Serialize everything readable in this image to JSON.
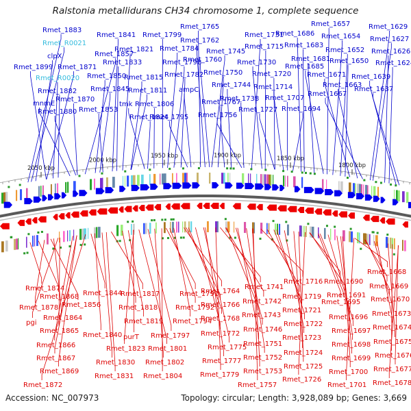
{
  "header": {
    "title": "Ralstonia metallidurans CH34 chromosome 1, complete sequence"
  },
  "footer": {
    "accession": "Accession: NC_007973",
    "summary": "Topology: circular; Length: 3,928,089 bp; Genes: 3,669"
  },
  "colors": {
    "forward_label": "#0000cc",
    "reverse_label": "#dd0000",
    "rna_label": "#33bbdd",
    "forward_strand": "#0000ee",
    "reverse_strand": "#ee0000",
    "backbone": "#5a5a5a"
  },
  "ticks": [
    "2050 kbp",
    "2000 kbp",
    "1950 kbp",
    "1900 kbp",
    "1850 kbp",
    "1800 kbp"
  ],
  "forward_labels": [
    "Rmet_1883",
    "Rmet_R0021",
    "clpX",
    "Rmet_1899",
    "Rmet_1871",
    "Rmet_R0020",
    "Rmet_1882",
    "mnmE",
    "Rmet_1870",
    "Rmet_1880",
    "Rmet_1857",
    "Rmet_1850",
    "Rmet_1845",
    "Rmet_1853",
    "Rmet_1841",
    "Rmet_1833",
    "Rmet_1821",
    "Rmet_1815",
    "Rmet_1811",
    "tmk",
    "Rmet_1824",
    "Rmet_1806",
    "Rmet_1799",
    "Rmet_1784",
    "Rmet_1798",
    "Rmet_1782",
    "Rmet_1795",
    "ampC",
    "Rmet_1765",
    "Rmet_1762",
    "Rmet_1760",
    "Rmet_1745",
    "Rmet_1750",
    "Rmet_1767",
    "Rmet_1744",
    "Rmet_1756",
    "Rmet_1738",
    "Rmet_1731",
    "Rmet_1730",
    "Rmet_1715",
    "Rmet_1720",
    "Rmet_1727",
    "Rmet_1714",
    "Rmet_1707",
    "Rmet_1694",
    "Rmet_1686",
    "Rmet_1683",
    "Rmet_1681",
    "Rmet_1685",
    "Rmet_1657",
    "Rmet_1654",
    "Rmet_1652",
    "Rmet_1650",
    "Rmet_1671",
    "Rmet_1663",
    "Rmet_1667",
    "Rmet_1629",
    "Rmet_1627",
    "Rmet_1626",
    "Rmet_1624",
    "Rmet_1639",
    "Rmet_1637"
  ],
  "reverse_labels": [
    "Rmet_1874",
    "Rmet_1868",
    "Rmet_1878",
    "Rmet_1856",
    "Rmet_1864",
    "pgi",
    "Rmet_1865",
    "Rmet_1866",
    "Rmet_1867",
    "Rmet_1869",
    "Rmet_1872",
    "Rmet_1844",
    "Rmet_1840",
    "Rmet_1830",
    "Rmet_1831",
    "Rmet_1817",
    "Rmet_1818",
    "Rmet_1819",
    "purT",
    "Rmet_1823",
    "Rmet_1801",
    "Rmet_1797",
    "Rmet_1802",
    "Rmet_1804",
    "Rmet_1791",
    "Rmet_1792",
    "Rmet_1794",
    "Rmet_1764",
    "Rmet_1766",
    "Rmet_1768",
    "Rmet_1772",
    "Rmet_1775",
    "Rmet_1777",
    "Rmet_1779",
    "Rmet_1741",
    "Rmet_1742",
    "Rmet_1743",
    "Rmet_1746",
    "Rmet_1751",
    "Rmet_1752",
    "Rmet_1753",
    "Rmet_1757",
    "Rmet_1716",
    "Rmet_1719",
    "Rmet_1721",
    "Rmet_1722",
    "Rmet_1723",
    "Rmet_1724",
    "Rmet_1725",
    "Rmet_1726",
    "Rmet_1690",
    "Rmet_1691",
    "Rmet_1695",
    "Rmet_1696",
    "Rmet_1697",
    "Rmet_1698",
    "Rmet_1699",
    "Rmet_1700",
    "Rmet_1701",
    "Rmet_1668",
    "Rmet_1669",
    "Rmet_1670",
    "Rmet_1673",
    "Rmet_1674",
    "Rmet_1675",
    "Rmet_1676",
    "Rmet_1677",
    "Rmet_1678"
  ]
}
